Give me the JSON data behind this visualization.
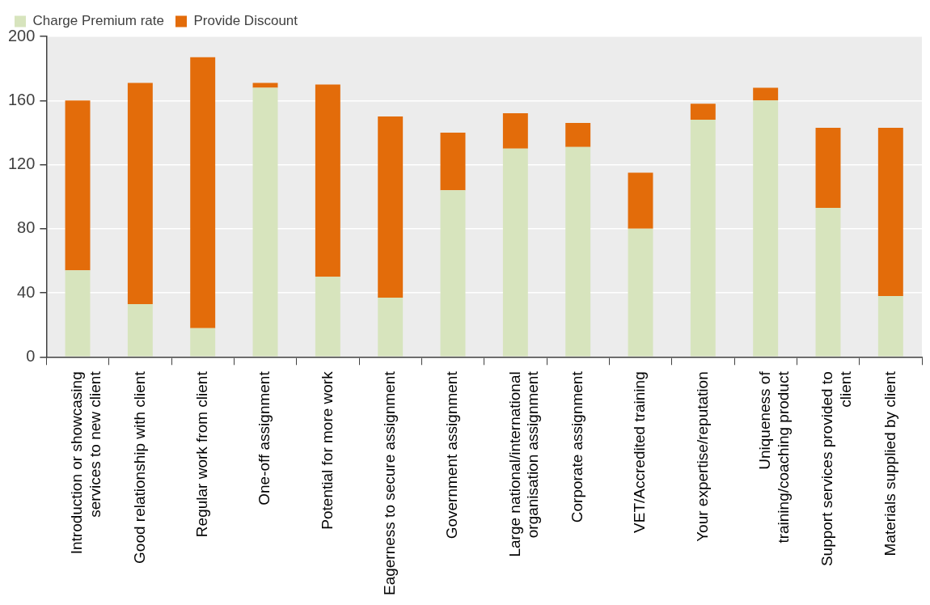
{
  "chart_data": {
    "type": "bar",
    "stacked": true,
    "categories": [
      "Introduction or showcasing services to new client",
      "Good relationship with client",
      "Regular work from client",
      "One-off assignment",
      "Potential for more work",
      "Eagerness to secure assignment",
      "Government assignment",
      "Large national/international organisation assignment",
      "Corporate assignment",
      "VET/Accredited training",
      "Your expertise/reputation",
      "Uniqueness of training/coaching product",
      "Support services provided to client",
      "Materials supplied by client"
    ],
    "series": [
      {
        "name": "Charge Premium rate",
        "color": "#d7e4bd",
        "values": [
          54,
          33,
          18,
          168,
          50,
          37,
          104,
          130,
          131,
          80,
          148,
          160,
          93,
          38
        ]
      },
      {
        "name": "Provide Discount",
        "color": "#e36c0a",
        "values": [
          106,
          138,
          169,
          3,
          120,
          113,
          36,
          22,
          15,
          35,
          10,
          8,
          50,
          105
        ]
      }
    ],
    "ylim": [
      0,
      200
    ],
    "yticks": [
      0,
      40,
      80,
      120,
      160,
      200
    ],
    "grid": "y",
    "legend": "top left"
  }
}
